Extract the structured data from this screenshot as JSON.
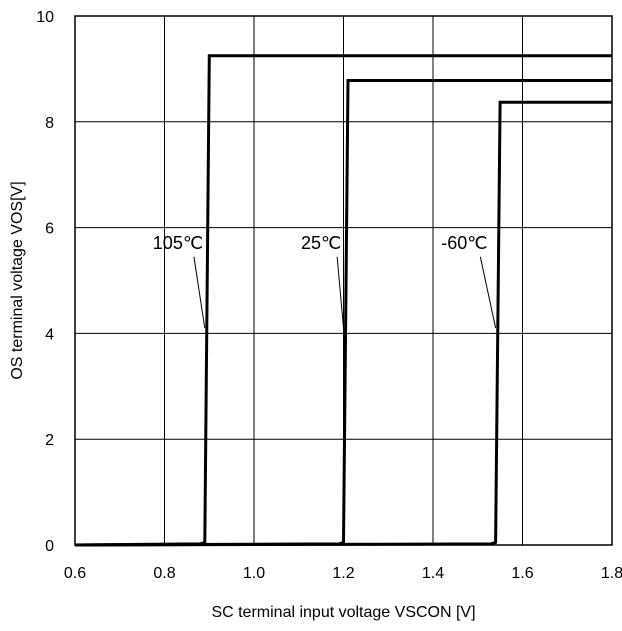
{
  "chart_data": {
    "type": "line",
    "xlabel": "SC terminal input voltage VSCON [V]",
    "ylabel": "OS terminal voltage VOS[V]",
    "xlim": [
      0.6,
      1.8
    ],
    "ylim": [
      0,
      10
    ],
    "xticks": [
      "0.6",
      "0.8",
      "1.0",
      "1.2",
      "1.4",
      "1.6",
      "1.8"
    ],
    "yticks": [
      "0",
      "2",
      "4",
      "6",
      "8",
      "10"
    ],
    "grid": true,
    "series": [
      {
        "name": "105℃",
        "x": [
          0.6,
          0.88,
          0.89,
          0.9,
          1.8
        ],
        "y": [
          0,
          0.02,
          0.05,
          9.25,
          9.25
        ]
      },
      {
        "name": "25℃",
        "x": [
          0.6,
          1.19,
          1.2,
          1.21,
          1.8
        ],
        "y": [
          0,
          0.02,
          0.05,
          8.78,
          8.78
        ]
      },
      {
        "name": "-60℃",
        "x": [
          0.6,
          1.53,
          1.54,
          1.55,
          1.8
        ],
        "y": [
          0,
          0.02,
          0.05,
          8.37,
          8.37
        ]
      }
    ],
    "annotations": [
      {
        "text": "105℃",
        "x": 0.83,
        "y": 5.6,
        "point_x": 0.89,
        "point_y": 4.1
      },
      {
        "text": "25℃",
        "x": 1.15,
        "y": 5.6,
        "point_x": 1.2,
        "point_y": 4.1
      },
      {
        "text": "-60℃",
        "x": 1.47,
        "y": 5.6,
        "point_x": 1.54,
        "point_y": 4.1
      }
    ],
    "line_color": "#000000",
    "grid_color": "#000000"
  }
}
